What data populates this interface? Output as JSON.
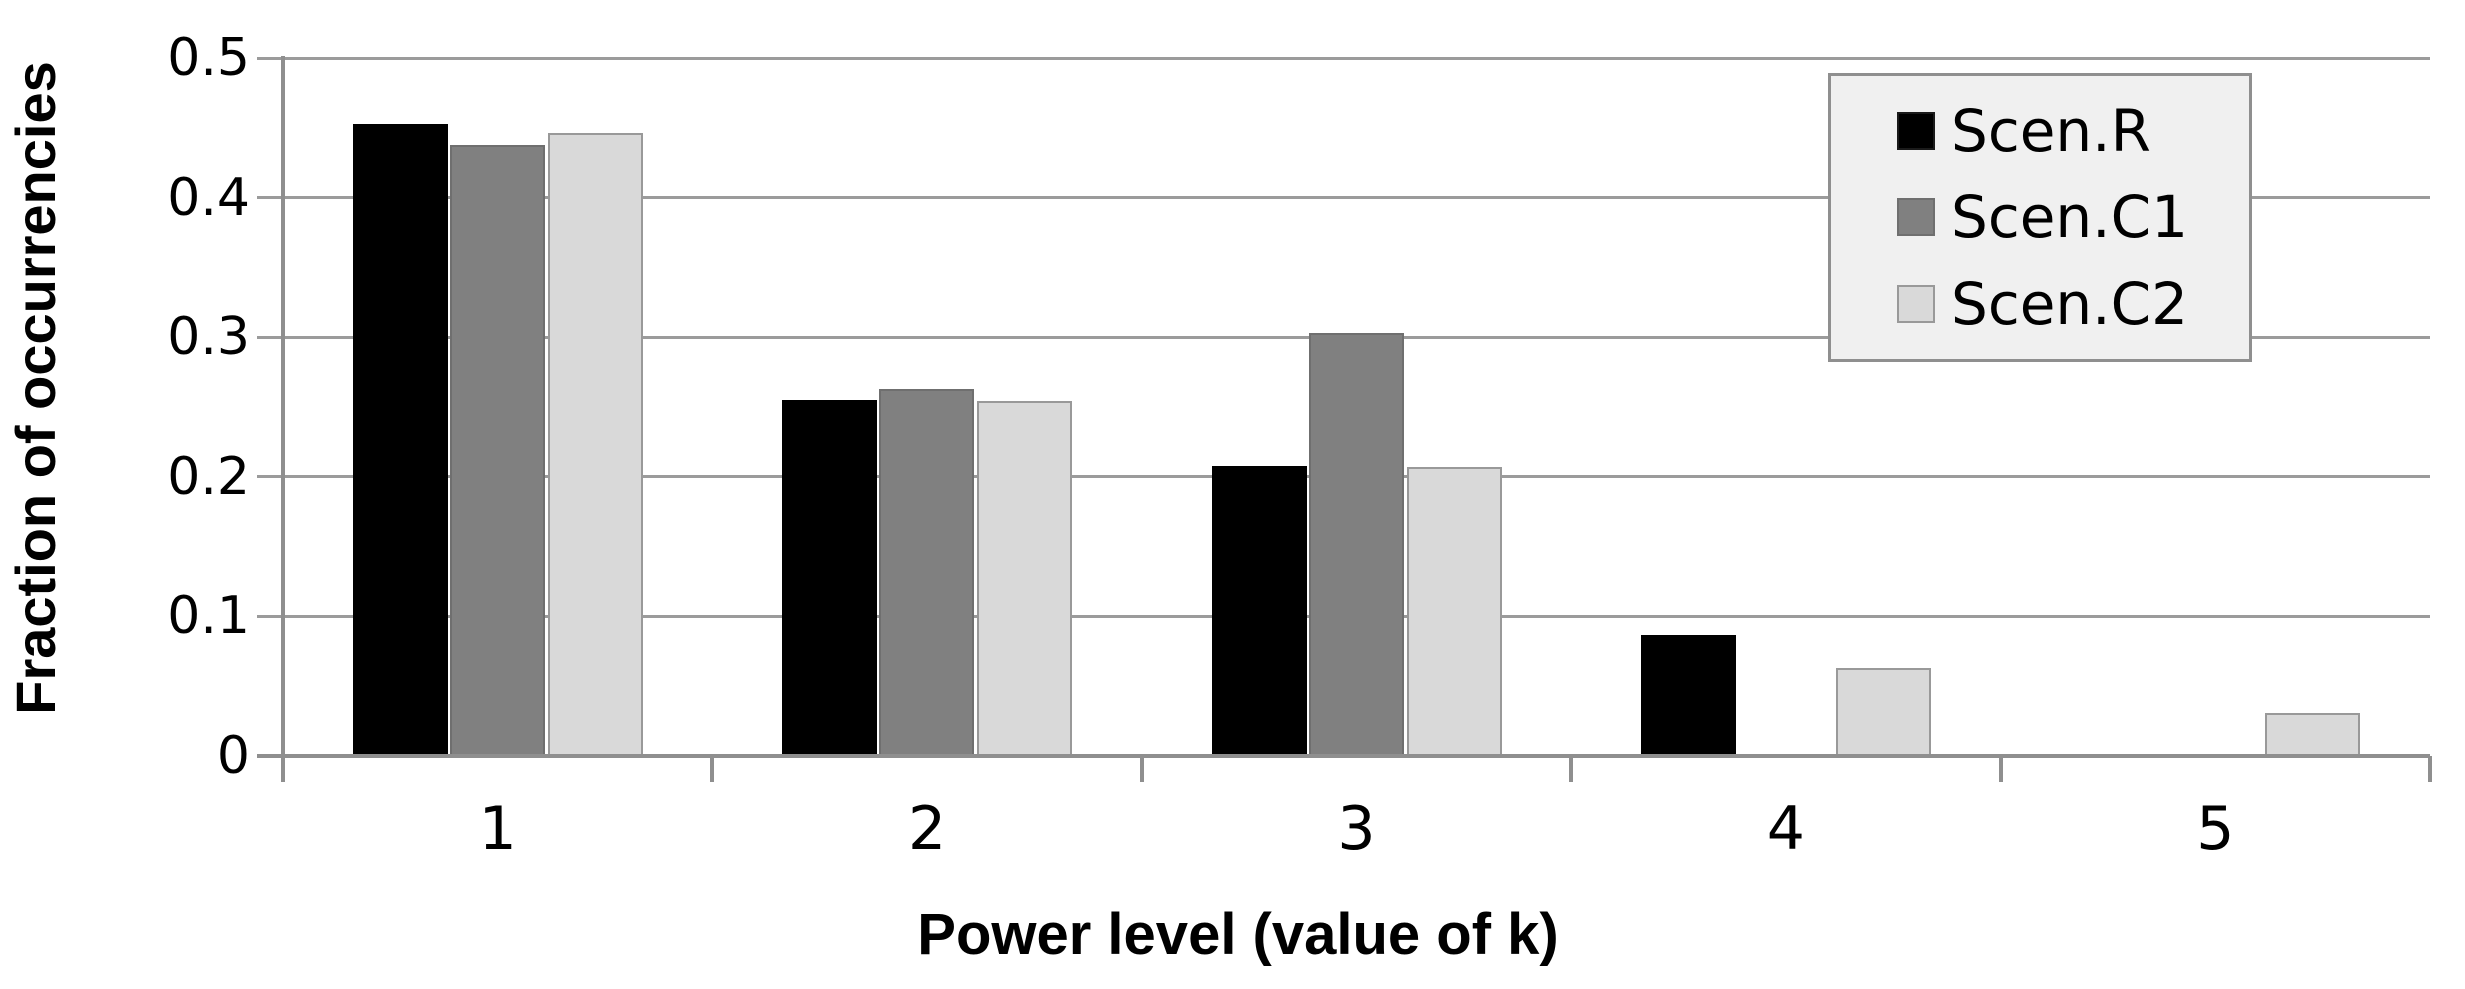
{
  "chart_data": {
    "type": "bar",
    "title": "",
    "xlabel": "Power level (value of k)",
    "ylabel": "Fraction of occurrencies",
    "categories": [
      "1",
      "2",
      "3",
      "4",
      "5"
    ],
    "series": [
      {
        "name": "Scen.R",
        "color": "#000000",
        "border_color": "#000000",
        "values": [
          0.453,
          0.255,
          0.208,
          0.087,
          0
        ]
      },
      {
        "name": "Scen.C1",
        "color": "#808080",
        "border_color": "#6f6f6f",
        "values": [
          0.438,
          0.263,
          0.303,
          0,
          0
        ]
      },
      {
        "name": "Scen.C2",
        "color": "#d9d9d9",
        "border_color": "#999999",
        "values": [
          0.446,
          0.254,
          0.207,
          0.063,
          0.031
        ]
      }
    ],
    "ylim": [
      0,
      0.5
    ],
    "ytick_labels": [
      "0",
      "0.1",
      "0.2",
      "0.3",
      "0.4",
      "0.5"
    ],
    "grid": true,
    "legend_position": "top-right",
    "colors": {
      "legend_background": "#f0f0f0",
      "axis": "#8f8f8f",
      "gridline": "#9b9b9b",
      "text": "#000000",
      "background": "#ffffff"
    }
  }
}
